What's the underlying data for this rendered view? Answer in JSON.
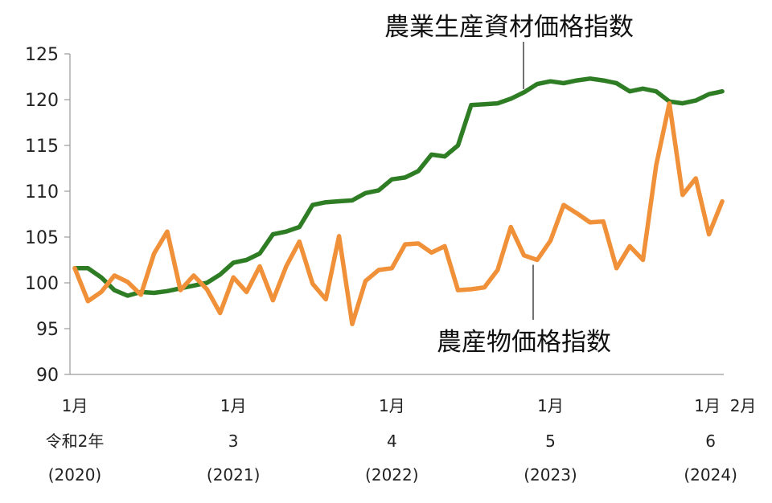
{
  "chart_data": {
    "type": "line",
    "title": "",
    "xlabel": "",
    "ylabel": "",
    "ylim": [
      90,
      125
    ],
    "yticks": [
      90,
      95,
      100,
      105,
      110,
      115,
      120,
      125
    ],
    "grid": false,
    "x_tick_labels": [
      {
        "index": 0,
        "month": "1月",
        "year_label": "令和2年",
        "year_ad": "(2020)"
      },
      {
        "index": 12,
        "month": "1月",
        "year_label": "3",
        "year_ad": "(2021)"
      },
      {
        "index": 24,
        "month": "1月",
        "year_label": "4",
        "year_ad": "(2022)"
      },
      {
        "index": 36,
        "month": "1月",
        "year_label": "5",
        "year_ad": "(2023)"
      },
      {
        "index": 48,
        "month": "1月",
        "year_label": "6",
        "year_ad": "(2024)"
      },
      {
        "index": 49,
        "month": "2月",
        "year_label": "",
        "year_ad": ""
      }
    ],
    "series": [
      {
        "name": "農業生産資材価格指数",
        "color": "#2e7d24",
        "values": [
          101.6,
          101.6,
          100.6,
          99.2,
          98.6,
          99.0,
          98.9,
          99.1,
          99.4,
          99.7,
          100.0,
          100.9,
          102.2,
          102.5,
          103.2,
          105.3,
          105.6,
          106.1,
          108.5,
          108.8,
          108.9,
          109.0,
          109.8,
          110.1,
          111.3,
          111.5,
          112.2,
          114.0,
          113.8,
          115.0,
          119.4,
          119.5,
          119.6,
          120.1,
          120.8,
          121.7,
          122.0,
          121.8,
          122.1,
          122.3,
          122.1,
          121.8,
          120.9,
          121.2,
          120.9,
          119.8,
          119.6,
          119.9,
          120.6,
          120.9
        ]
      },
      {
        "name": "農産物価格指数",
        "color": "#f0913a",
        "values": [
          101.6,
          98.0,
          99.0,
          100.8,
          100.1,
          98.7,
          103.2,
          105.6,
          99.2,
          100.8,
          99.3,
          96.7,
          100.6,
          99.0,
          101.8,
          98.1,
          101.8,
          104.5,
          99.9,
          98.2,
          105.1,
          95.5,
          100.2,
          101.4,
          101.6,
          104.2,
          104.3,
          103.3,
          104.0,
          99.2,
          99.3,
          99.5,
          101.4,
          106.1,
          103.0,
          102.5,
          104.6,
          108.5,
          107.6,
          106.6,
          106.7,
          101.6,
          104.0,
          102.5,
          112.8,
          119.6,
          109.6,
          111.4,
          105.3,
          108.9
        ]
      }
    ],
    "annotations": [
      {
        "text": "農業生産資材価格指数",
        "points_to_series": 0,
        "at_index": 34
      },
      {
        "text": "農産物価格指数",
        "points_to_series": 1,
        "at_index": 34
      }
    ]
  }
}
